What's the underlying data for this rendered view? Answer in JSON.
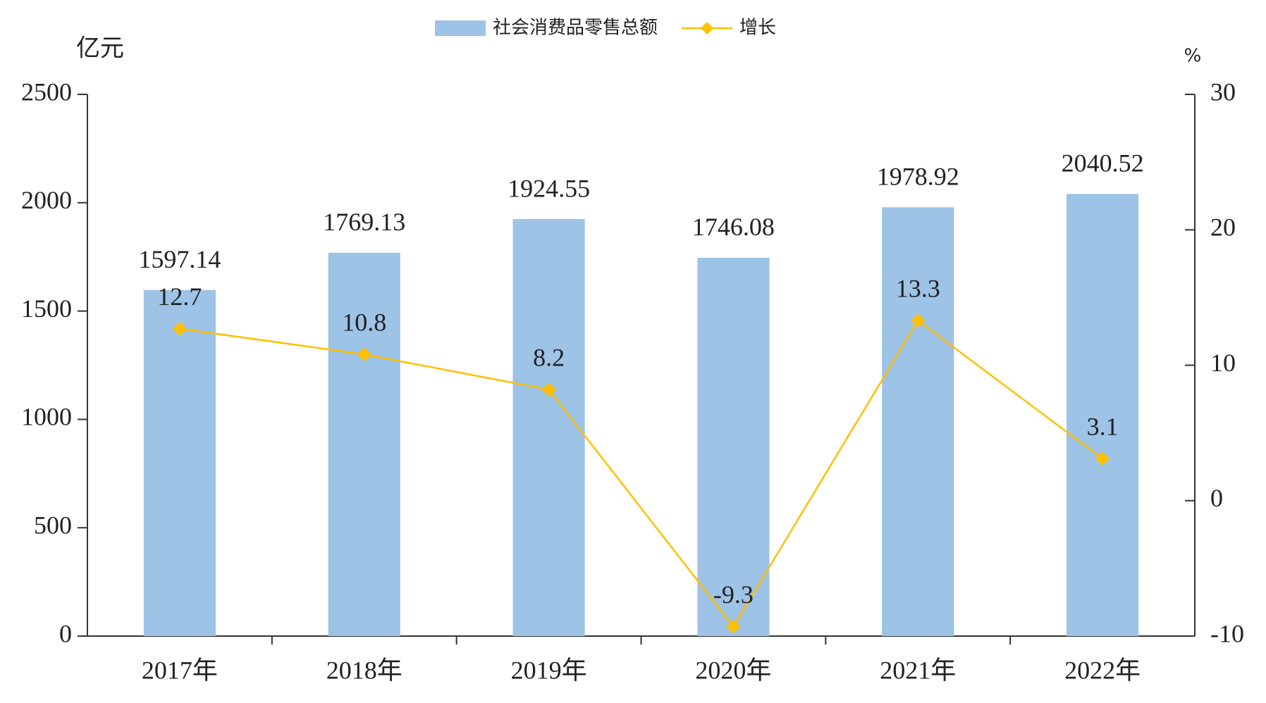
{
  "chart_data": {
    "type": "bar",
    "categories": [
      "2017年",
      "2018年",
      "2019年",
      "2020年",
      "2021年",
      "2022年"
    ],
    "series": [
      {
        "name": "社会消费品零售总额",
        "color": "#9dc3e6",
        "values": [
          1597.14,
          1769.13,
          1924.55,
          1746.08,
          1978.92,
          2040.52
        ]
      },
      {
        "name": "增长",
        "type": "line",
        "axis": "y2",
        "color": "#ffc000",
        "values": [
          12.7,
          10.8,
          8.2,
          -9.3,
          13.3,
          3.1
        ]
      }
    ],
    "y_label": "亿元",
    "y2_label": "%",
    "ylim": [
      0,
      2500
    ],
    "yticks": [
      0,
      500,
      1000,
      1500,
      2000,
      2500
    ],
    "y2lim": [
      -10,
      30
    ],
    "y2ticks": [
      -10,
      0,
      10,
      20,
      30
    ],
    "legend": "top"
  }
}
